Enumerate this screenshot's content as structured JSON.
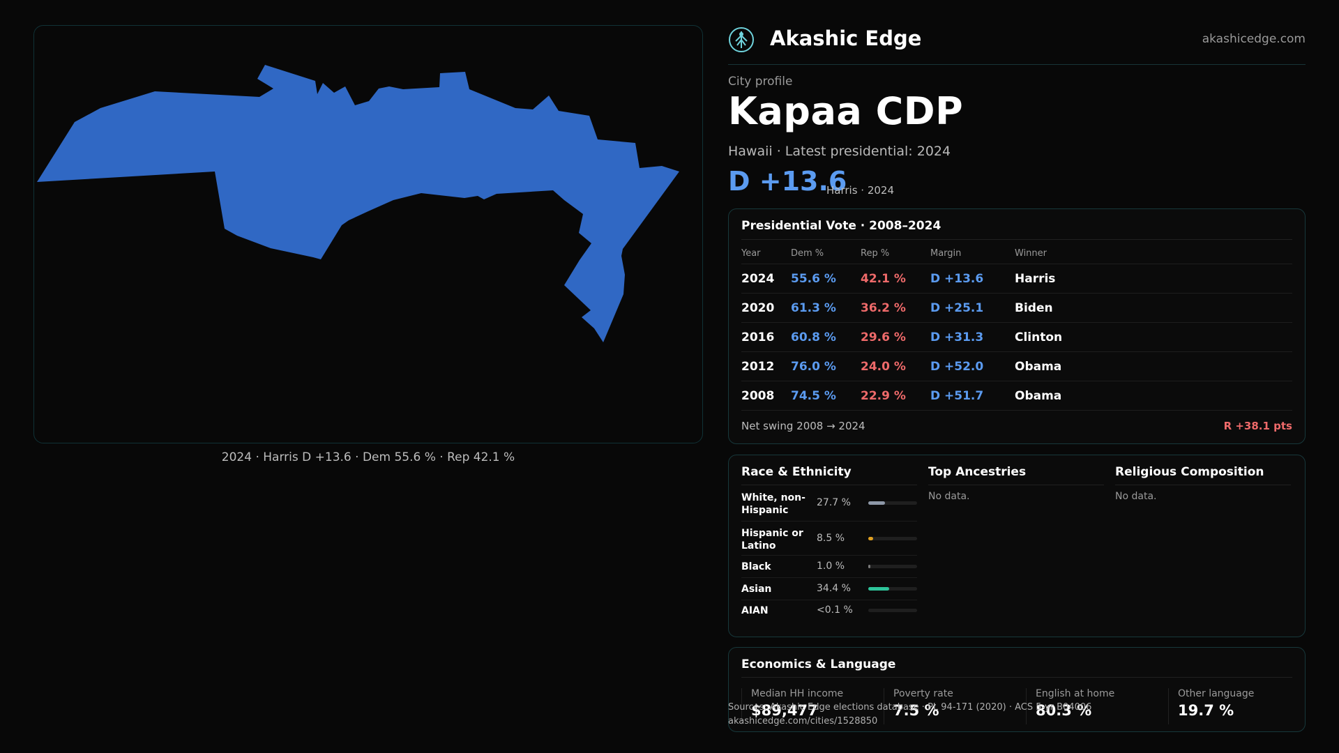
{
  "brand": {
    "name": "Akashic Edge",
    "url": "akashicedge.com",
    "logo_icon": "tree-of-life-icon"
  },
  "profile": {
    "eyebrow": "City profile",
    "name": "Kapaa CDP",
    "subtitle": "Hawaii · Latest presidential: 2024",
    "margin": "D +13.6",
    "margin_note": "Harris · 2024"
  },
  "map": {
    "caption": "2024 · Harris D +13.6 · Dem 55.6 % · Rep 42.1 %",
    "fill_color": "#3068c4"
  },
  "vote": {
    "title": "Presidential Vote · 2008–2024",
    "headers": {
      "year": "Year",
      "dem": "Dem %",
      "rep": "Rep %",
      "margin": "Margin",
      "winner": "Winner"
    },
    "rows": [
      {
        "year": "2024",
        "dem": "55.6 %",
        "rep": "42.1 %",
        "margin": "D +13.6",
        "winner": "Harris"
      },
      {
        "year": "2020",
        "dem": "61.3 %",
        "rep": "36.2 %",
        "margin": "D +25.1",
        "winner": "Biden"
      },
      {
        "year": "2016",
        "dem": "60.8 %",
        "rep": "29.6 %",
        "margin": "D +31.3",
        "winner": "Clinton"
      },
      {
        "year": "2012",
        "dem": "76.0 %",
        "rep": "24.0 %",
        "margin": "D +52.0",
        "winner": "Obama"
      },
      {
        "year": "2008",
        "dem": "74.5 %",
        "rep": "22.9 %",
        "margin": "D +51.7",
        "winner": "Obama"
      }
    ],
    "swing_label": "Net swing 2008 → 2024",
    "swing_value": "R +38.1 pts"
  },
  "race": {
    "title": "Race & Ethnicity",
    "rows": [
      {
        "label": "White, non-Hispanic",
        "pct": "27.7 %",
        "share": 0.277,
        "color": "#8e98a8"
      },
      {
        "label": "Hispanic or Latino",
        "pct": "8.5 %",
        "share": 0.085,
        "color": "#e0a020"
      },
      {
        "label": "Black",
        "pct": "1.0 %",
        "share": 0.01,
        "color": "#7a7a7a"
      },
      {
        "label": "Asian",
        "pct": "34.4 %",
        "share": 0.344,
        "color": "#2ec49a"
      },
      {
        "label": "AIAN",
        "pct": "<0.1 %",
        "share": 0.0,
        "color": "#7a7a7a"
      }
    ]
  },
  "ancestries": {
    "title": "Top Ancestries",
    "empty": "No data."
  },
  "religion": {
    "title": "Religious Composition",
    "empty": "No data."
  },
  "economics": {
    "title": "Economics & Language",
    "stats": [
      {
        "label": "Median HH income",
        "value": "$89,477"
      },
      {
        "label": "Poverty rate",
        "value": "7.5 %"
      },
      {
        "label": "English at home",
        "value": "80.3 %"
      },
      {
        "label": "Other language",
        "value": "19.7 %"
      }
    ]
  },
  "source": {
    "line1": "Sources: Akashic Edge elections database · PL 94-171 (2020) · ACS 5-yr B04006",
    "line2": "akashicedge.com/cities/1528850"
  }
}
